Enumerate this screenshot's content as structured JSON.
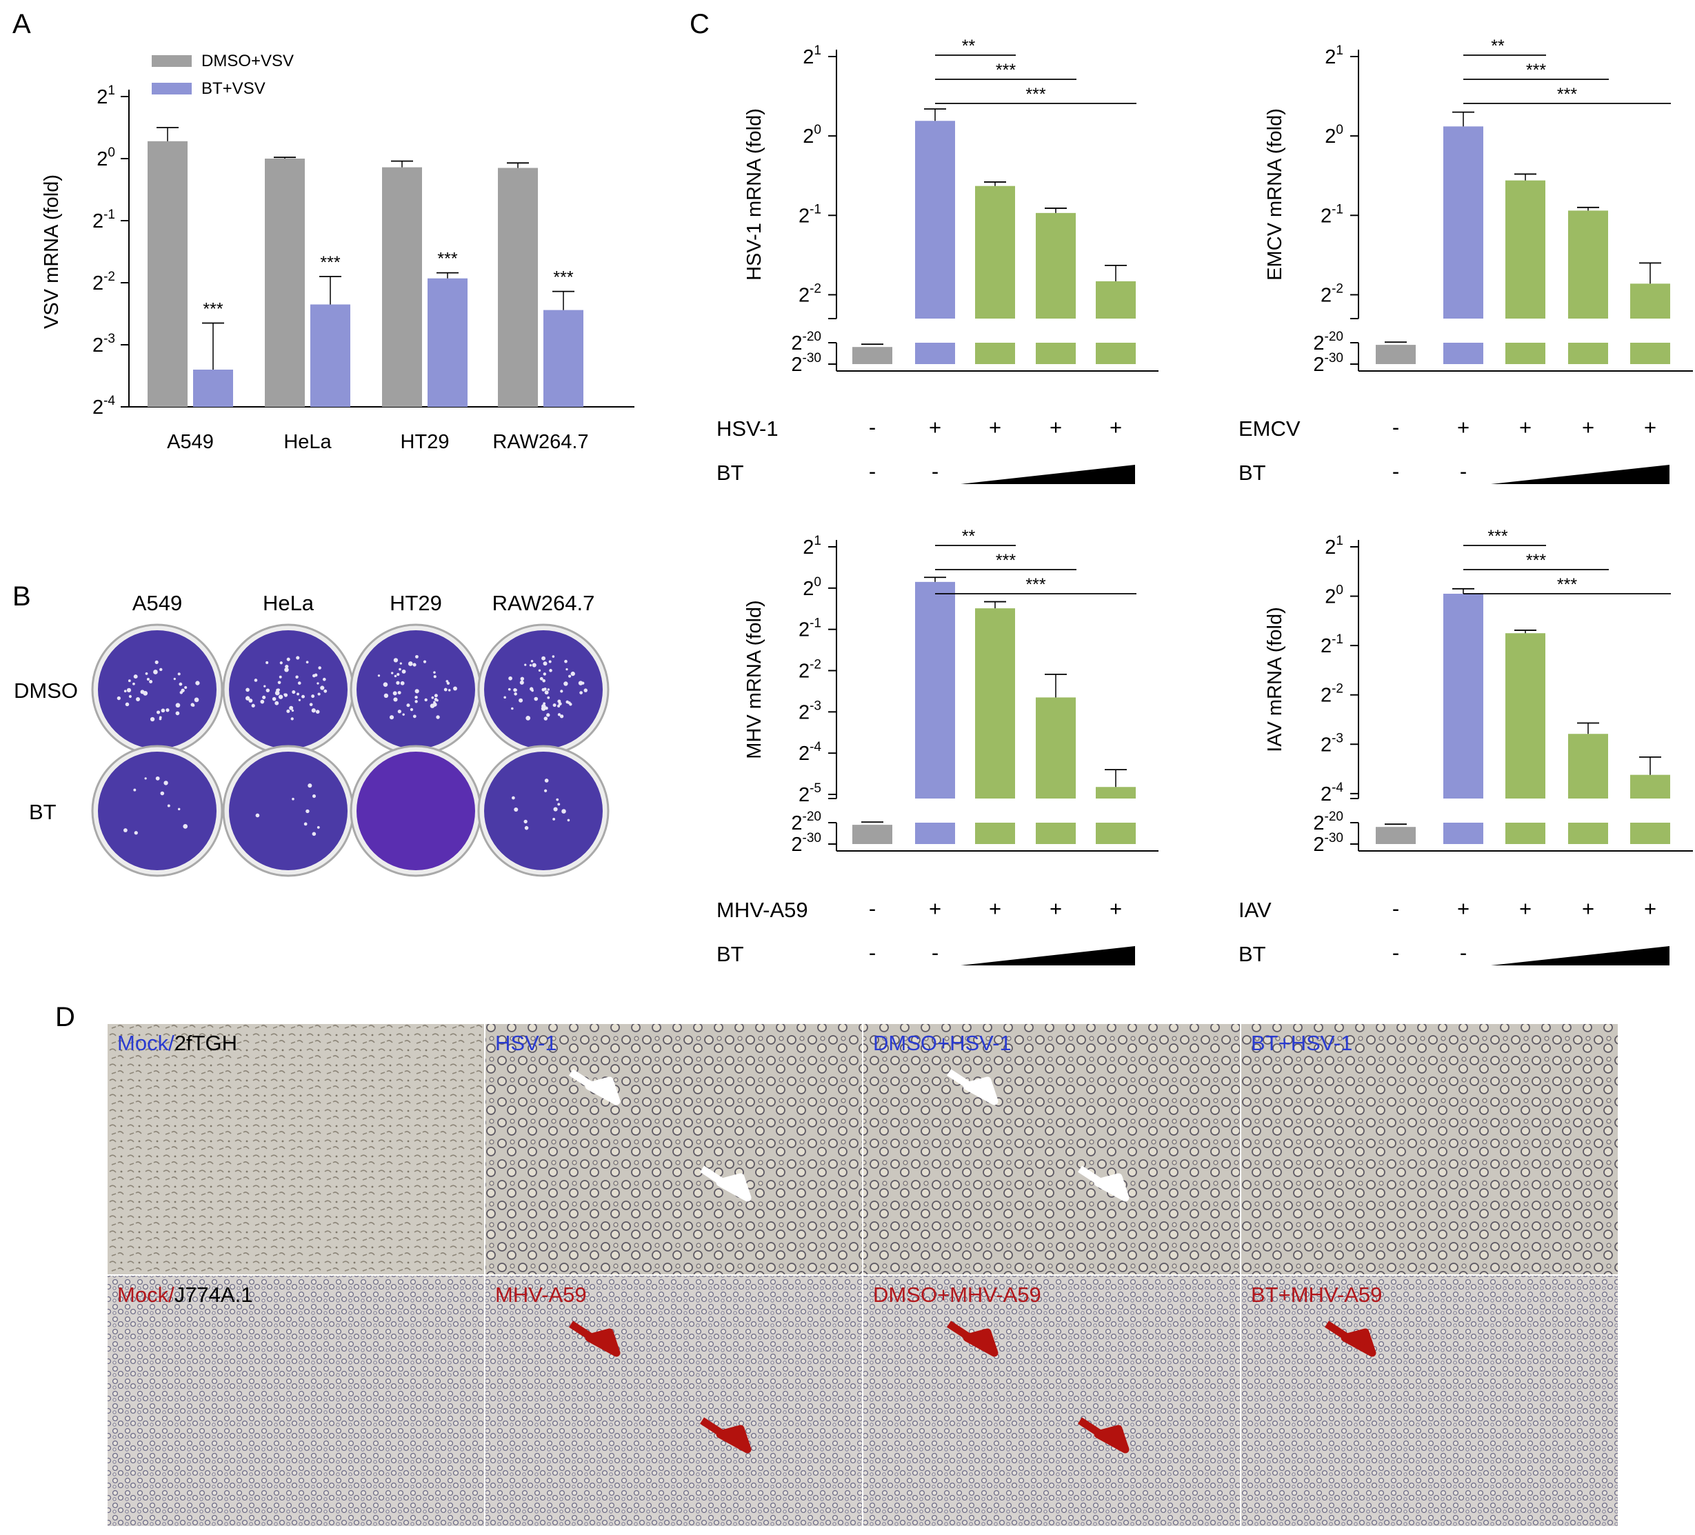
{
  "panel_letters": {
    "a": "A",
    "b": "B",
    "c": "C",
    "d": "D"
  },
  "colors": {
    "dmso": "#a0a0a0",
    "bt": "#8e94d6",
    "virus": "#8e94d6",
    "bt_dose": "#9cbb63",
    "control": "#a0a0a0",
    "blue_label": "#2a3bd0",
    "red_label": "#b2171c",
    "plaque": "#4b3aa6"
  },
  "chart_data": [
    {
      "id": "A",
      "type": "bar",
      "ylabel": "VSV mRNA (fold)",
      "yscale": "log2",
      "ylim": [
        -4,
        1
      ],
      "yticks": [
        {
          "exp": "1",
          "value": 1
        },
        {
          "exp": "0",
          "value": 0
        },
        {
          "exp": "-1",
          "value": -1
        },
        {
          "exp": "-2",
          "value": -2
        },
        {
          "exp": "-3",
          "value": -3
        },
        {
          "exp": "-4",
          "value": -4
        }
      ],
      "tick_base": "2",
      "categories": [
        "A549",
        "HeLa",
        "HT29",
        "RAW264.7"
      ],
      "legend": {
        "position": "top-left"
      },
      "series": [
        {
          "name": "DMSO+VSV",
          "color": "#a0a0a0",
          "values": [
            0.28,
            0.0,
            -0.14,
            -0.15
          ],
          "errors": [
            0.22,
            0.02,
            0.1,
            0.08
          ],
          "annotations": [
            "",
            "",
            "",
            ""
          ]
        },
        {
          "name": "BT+VSV",
          "color": "#8e94d6",
          "values": [
            -3.4,
            -2.35,
            -1.93,
            -2.44
          ],
          "errors": [
            0.75,
            0.45,
            0.09,
            0.3
          ],
          "annotations": [
            "***",
            "***",
            "***",
            "***"
          ]
        }
      ]
    },
    {
      "id": "C1",
      "type": "bar",
      "ylabel": "HSV-1 mRNA (fold)",
      "yscale": "log2-broken",
      "ylim": [
        -2.3,
        1
      ],
      "yticks": [
        {
          "exp": "1",
          "value": 1
        },
        {
          "exp": "0",
          "value": 0
        },
        {
          "exp": "-1",
          "value": -1
        },
        {
          "exp": "-2",
          "value": -2
        }
      ],
      "lower_ticks": [
        {
          "exp": "-20",
          "value": -20
        },
        {
          "exp": "-30",
          "value": -30
        }
      ],
      "tick_base": "2",
      "virus_label": "HSV-1",
      "bt_label": "BT",
      "virus_row": [
        "-",
        "+",
        "+",
        "+",
        "+"
      ],
      "bt_row": [
        "-",
        "-",
        "",
        "",
        ""
      ],
      "values": [
        -22,
        0.19,
        -0.63,
        -0.97,
        -1.83
      ],
      "errors": [
        0.4,
        0.15,
        0.05,
        0.06,
        0.2
      ],
      "bar_colors": [
        "#a0a0a0",
        "#8e94d6",
        "#9cbb63",
        "#9cbb63",
        "#9cbb63"
      ],
      "comparisons": [
        {
          "from": 1,
          "to": 2,
          "label": "**"
        },
        {
          "from": 1,
          "to": 3,
          "label": "***"
        },
        {
          "from": 1,
          "to": 4,
          "label": "***"
        }
      ]
    },
    {
      "id": "C2",
      "type": "bar",
      "ylabel": "EMCV mRNA (fold)",
      "yscale": "log2-broken",
      "ylim": [
        -2.3,
        1
      ],
      "yticks": [
        {
          "exp": "1",
          "value": 1
        },
        {
          "exp": "0",
          "value": 0
        },
        {
          "exp": "-1",
          "value": -1
        },
        {
          "exp": "-2",
          "value": -2
        }
      ],
      "lower_ticks": [
        {
          "exp": "-20",
          "value": -20
        },
        {
          "exp": "-30",
          "value": -30
        }
      ],
      "tick_base": "2",
      "virus_label": "EMCV",
      "bt_label": "BT",
      "virus_row": [
        "-",
        "+",
        "+",
        "+",
        "+"
      ],
      "bt_row": [
        "-",
        "-",
        "",
        "",
        ""
      ],
      "values": [
        -21,
        0.12,
        -0.56,
        -0.94,
        -1.86
      ],
      "errors": [
        0.4,
        0.18,
        0.08,
        0.04,
        0.26
      ],
      "bar_colors": [
        "#a0a0a0",
        "#8e94d6",
        "#9cbb63",
        "#9cbb63",
        "#9cbb63"
      ],
      "comparisons": [
        {
          "from": 1,
          "to": 2,
          "label": "**"
        },
        {
          "from": 1,
          "to": 3,
          "label": "***"
        },
        {
          "from": 1,
          "to": 4,
          "label": "***"
        }
      ]
    },
    {
      "id": "C3",
      "type": "bar",
      "ylabel": "MHV mRNA (fold)",
      "yscale": "log2-broken",
      "ylim": [
        -5.1,
        1
      ],
      "yticks": [
        {
          "exp": "1",
          "value": 1
        },
        {
          "exp": "0",
          "value": 0
        },
        {
          "exp": "-1",
          "value": -1
        },
        {
          "exp": "-2",
          "value": -2
        },
        {
          "exp": "-3",
          "value": -3
        },
        {
          "exp": "-4",
          "value": -4
        },
        {
          "exp": "-5",
          "value": -5
        }
      ],
      "lower_ticks": [
        {
          "exp": "-20",
          "value": -20
        },
        {
          "exp": "-30",
          "value": -30
        }
      ],
      "tick_base": "2",
      "virus_label": "MHV-A59",
      "bt_label": "BT",
      "virus_row": [
        "-",
        "+",
        "+",
        "+",
        "+"
      ],
      "bt_row": [
        "-",
        "-",
        "",
        "",
        ""
      ],
      "values": [
        -21,
        0.15,
        -0.49,
        -2.65,
        -4.82
      ],
      "errors": [
        0.4,
        0.11,
        0.16,
        0.56,
        0.42
      ],
      "bar_colors": [
        "#a0a0a0",
        "#8e94d6",
        "#9cbb63",
        "#9cbb63",
        "#9cbb63"
      ],
      "comparisons": [
        {
          "from": 1,
          "to": 2,
          "label": "**"
        },
        {
          "from": 1,
          "to": 3,
          "label": "***"
        },
        {
          "from": 1,
          "to": 4,
          "label": "***"
        }
      ]
    },
    {
      "id": "C4",
      "type": "bar",
      "ylabel": "IAV mRNA (fold)",
      "yscale": "log2-broken",
      "ylim": [
        -4.1,
        1
      ],
      "yticks": [
        {
          "exp": "1",
          "value": 1
        },
        {
          "exp": "0",
          "value": 0
        },
        {
          "exp": "-1",
          "value": -1
        },
        {
          "exp": "-2",
          "value": -2
        },
        {
          "exp": "-3",
          "value": -3
        },
        {
          "exp": "-4",
          "value": -4
        }
      ],
      "lower_ticks": [
        {
          "exp": "-20",
          "value": -20
        },
        {
          "exp": "-30",
          "value": -30
        }
      ],
      "tick_base": "2",
      "virus_label": "IAV",
      "bt_label": "BT",
      "virus_row": [
        "-",
        "+",
        "+",
        "+",
        "+"
      ],
      "bt_row": [
        "-",
        "-",
        "",
        "",
        ""
      ],
      "values": [
        -22,
        0.05,
        -0.75,
        -2.79,
        -3.62
      ],
      "errors": [
        0.4,
        0.1,
        0.06,
        0.22,
        0.36
      ],
      "bar_colors": [
        "#a0a0a0",
        "#8e94d6",
        "#9cbb63",
        "#9cbb63",
        "#9cbb63"
      ],
      "comparisons": [
        {
          "from": 1,
          "to": 2,
          "label": "***"
        },
        {
          "from": 1,
          "to": 3,
          "label": "***"
        },
        {
          "from": 1,
          "to": 4,
          "label": "***"
        }
      ]
    }
  ],
  "plaque_assay": {
    "columns": [
      "A549",
      "HeLa",
      "HT29",
      "RAW264.7"
    ],
    "rows": [
      "DMSO",
      "BT"
    ],
    "plaque_density": [
      [
        36,
        50,
        44,
        58
      ],
      [
        10,
        8,
        0,
        12
      ]
    ]
  },
  "micrographs": [
    {
      "id": "d1",
      "parts": [
        {
          "text": "Mock/",
          "tone": "blue"
        },
        {
          "text": "2fTGH",
          "tone": "black"
        }
      ],
      "arrows": []
    },
    {
      "id": "d2",
      "parts": [
        {
          "text": "HSV-1",
          "tone": "blue"
        }
      ],
      "arrows": [
        "white",
        "white"
      ]
    },
    {
      "id": "d3",
      "parts": [
        {
          "text": "DMSO+HSV-1",
          "tone": "blue"
        }
      ],
      "arrows": [
        "white",
        "white"
      ]
    },
    {
      "id": "d4",
      "parts": [
        {
          "text": "BT+HSV-1",
          "tone": "blue"
        }
      ],
      "arrows": []
    },
    {
      "id": "d5",
      "parts": [
        {
          "text": "Mock/",
          "tone": "red"
        },
        {
          "text": "J774A.1",
          "tone": "black"
        }
      ],
      "arrows": []
    },
    {
      "id": "d6",
      "parts": [
        {
          "text": "MHV-A59",
          "tone": "red"
        }
      ],
      "arrows": [
        "red",
        "red"
      ]
    },
    {
      "id": "d7",
      "parts": [
        {
          "text": "DMSO+MHV-A59",
          "tone": "red"
        }
      ],
      "arrows": [
        "red",
        "red"
      ]
    },
    {
      "id": "d8",
      "parts": [
        {
          "text": "BT+MHV-A59",
          "tone": "red"
        }
      ],
      "arrows": [
        "red"
      ]
    }
  ]
}
